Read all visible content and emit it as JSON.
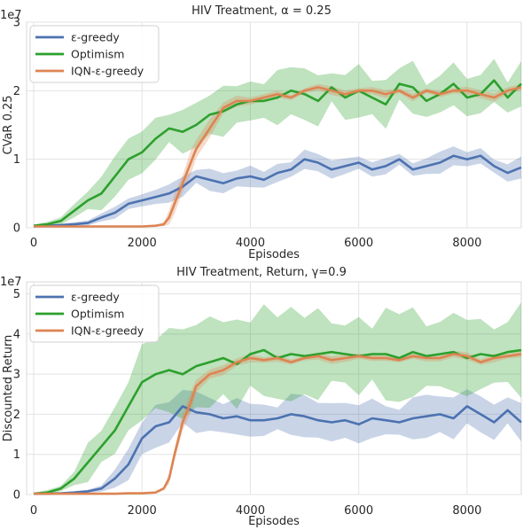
{
  "chart_data": [
    {
      "type": "line",
      "title": "HIV Treatment, α = 0.25",
      "xlabel": "Episodes",
      "ylabel": "CVaR 0.25",
      "y_multiplier": "1e7",
      "xlim": [
        0,
        9000
      ],
      "ylim": [
        0,
        3
      ],
      "xticks": [
        "0",
        "2000",
        "4000",
        "6000",
        "8000"
      ],
      "yticks": [
        "0",
        "1",
        "2",
        "3"
      ],
      "grid": true,
      "legend_position": "top-left",
      "series": [
        {
          "name": "ε-greedy",
          "color": "#4c72b0",
          "x": [
            0,
            250,
            500,
            750,
            1000,
            1250,
            1500,
            1750,
            2000,
            2250,
            2500,
            2750,
            3000,
            3250,
            3500,
            3750,
            4000,
            4250,
            4500,
            4750,
            5000,
            5250,
            5500,
            5750,
            6000,
            6250,
            6500,
            6750,
            7000,
            7250,
            7500,
            7750,
            8000,
            8250,
            8500,
            8750,
            9000
          ],
          "values": [
            0.02,
            0.03,
            0.04,
            0.05,
            0.07,
            0.15,
            0.22,
            0.35,
            0.4,
            0.45,
            0.5,
            0.6,
            0.75,
            0.7,
            0.65,
            0.72,
            0.75,
            0.7,
            0.8,
            0.85,
            1.0,
            0.95,
            0.85,
            0.9,
            0.95,
            0.85,
            0.9,
            1.0,
            0.85,
            0.9,
            0.95,
            1.05,
            1.0,
            1.05,
            0.9,
            0.8,
            0.88
          ],
          "band": [
            0.01,
            0.01,
            0.02,
            0.03,
            0.04,
            0.06,
            0.08,
            0.1,
            0.1,
            0.1,
            0.1,
            0.12,
            0.12,
            0.12,
            0.12,
            0.12,
            0.12,
            0.12,
            0.12,
            0.12,
            0.12,
            0.12,
            0.12,
            0.12,
            0.12,
            0.12,
            0.12,
            0.12,
            0.12,
            0.12,
            0.12,
            0.12,
            0.12,
            0.12,
            0.12,
            0.12,
            0.12
          ]
        },
        {
          "name": "Optimism",
          "color": "#2ca02c",
          "x": [
            0,
            250,
            500,
            750,
            1000,
            1250,
            1500,
            1750,
            2000,
            2250,
            2500,
            2750,
            3000,
            3250,
            3500,
            3750,
            4000,
            4250,
            4500,
            4750,
            5000,
            5250,
            5500,
            5750,
            6000,
            6250,
            6500,
            6750,
            7000,
            7250,
            7500,
            7750,
            8000,
            8250,
            8500,
            8750,
            9000
          ],
          "values": [
            0.03,
            0.05,
            0.1,
            0.25,
            0.4,
            0.5,
            0.75,
            1.0,
            1.1,
            1.3,
            1.45,
            1.4,
            1.5,
            1.65,
            1.7,
            1.8,
            1.85,
            1.85,
            1.9,
            2.0,
            1.95,
            1.85,
            2.05,
            1.9,
            2.0,
            1.9,
            1.8,
            2.1,
            2.05,
            1.85,
            1.95,
            2.1,
            1.9,
            1.95,
            2.15,
            1.9,
            2.1
          ],
          "band": [
            0.02,
            0.03,
            0.05,
            0.1,
            0.15,
            0.2,
            0.25,
            0.3,
            0.3,
            0.3,
            0.3,
            0.3,
            0.3,
            0.3,
            0.3,
            0.3,
            0.3,
            0.3,
            0.3,
            0.3,
            0.3,
            0.3,
            0.3,
            0.3,
            0.3,
            0.3,
            0.3,
            0.3,
            0.3,
            0.3,
            0.3,
            0.3,
            0.3,
            0.3,
            0.3,
            0.3,
            0.3
          ]
        },
        {
          "name": "IQN-ε-greedy",
          "color": "#dd8452",
          "x": [
            0,
            250,
            500,
            750,
            1000,
            1250,
            1500,
            1750,
            2000,
            2250,
            2400,
            2500,
            2600,
            2750,
            2900,
            3000,
            3250,
            3500,
            3750,
            4000,
            4250,
            4500,
            4750,
            5000,
            5250,
            5500,
            5750,
            6000,
            6250,
            6500,
            6750,
            7000,
            7250,
            7500,
            7750,
            8000,
            8250,
            8500,
            8750,
            9000
          ],
          "values": [
            0.02,
            0.02,
            0.02,
            0.02,
            0.02,
            0.02,
            0.02,
            0.02,
            0.02,
            0.03,
            0.05,
            0.15,
            0.35,
            0.65,
            0.95,
            1.15,
            1.45,
            1.75,
            1.85,
            1.85,
            1.9,
            1.95,
            1.9,
            2.0,
            2.05,
            2.0,
            1.95,
            2.0,
            2.0,
            1.95,
            2.0,
            1.9,
            2.0,
            1.95,
            2.0,
            2.0,
            1.95,
            1.9,
            2.0,
            2.05
          ],
          "band": [
            0.01,
            0.01,
            0.01,
            0.01,
            0.01,
            0.01,
            0.01,
            0.01,
            0.01,
            0.01,
            0.03,
            0.08,
            0.12,
            0.15,
            0.15,
            0.12,
            0.1,
            0.08,
            0.06,
            0.05,
            0.05,
            0.05,
            0.05,
            0.05,
            0.05,
            0.05,
            0.05,
            0.05,
            0.05,
            0.05,
            0.05,
            0.05,
            0.05,
            0.05,
            0.05,
            0.05,
            0.05,
            0.05,
            0.05,
            0.05
          ]
        }
      ]
    },
    {
      "type": "line",
      "title": "HIV Treatment, Return, γ=0.9",
      "xlabel": "Episodes",
      "ylabel": "Discounted Return",
      "y_multiplier": "1e7",
      "xlim": [
        0,
        9000
      ],
      "ylim": [
        0,
        5.3
      ],
      "xticks": [
        "0",
        "2000",
        "4000",
        "6000",
        "8000"
      ],
      "yticks": [
        "0",
        "1",
        "2",
        "3",
        "4",
        "5"
      ],
      "grid": true,
      "legend_position": "top-left",
      "series": [
        {
          "name": "ε-greedy",
          "color": "#4c72b0",
          "x": [
            0,
            250,
            500,
            750,
            1000,
            1250,
            1500,
            1750,
            2000,
            2250,
            2500,
            2750,
            3000,
            3250,
            3500,
            3750,
            4000,
            4250,
            4500,
            4750,
            5000,
            5250,
            5500,
            5750,
            6000,
            6250,
            6500,
            6750,
            7000,
            7250,
            7500,
            7750,
            8000,
            8250,
            8500,
            8750,
            9000
          ],
          "values": [
            0.02,
            0.02,
            0.03,
            0.05,
            0.08,
            0.15,
            0.4,
            0.75,
            1.4,
            1.7,
            1.8,
            2.2,
            2.05,
            2.0,
            1.9,
            1.95,
            1.85,
            1.85,
            1.9,
            2.0,
            1.95,
            1.85,
            1.8,
            1.85,
            1.75,
            1.9,
            1.85,
            1.8,
            1.9,
            1.95,
            2.0,
            1.9,
            2.2,
            2.0,
            1.8,
            2.1,
            1.8
          ],
          "band": [
            0.01,
            0.01,
            0.02,
            0.03,
            0.05,
            0.1,
            0.2,
            0.3,
            0.35,
            0.4,
            0.4,
            0.4,
            0.4,
            0.4,
            0.4,
            0.4,
            0.4,
            0.4,
            0.4,
            0.4,
            0.4,
            0.4,
            0.4,
            0.4,
            0.4,
            0.4,
            0.4,
            0.4,
            0.4,
            0.4,
            0.4,
            0.4,
            0.4,
            0.4,
            0.4,
            0.4,
            0.4
          ]
        },
        {
          "name": "Optimism",
          "color": "#2ca02c",
          "x": [
            0,
            250,
            500,
            750,
            1000,
            1250,
            1500,
            1750,
            2000,
            2250,
            2500,
            2750,
            3000,
            3250,
            3500,
            3750,
            4000,
            4250,
            4500,
            4750,
            5000,
            5250,
            5500,
            5750,
            6000,
            6250,
            6500,
            6750,
            7000,
            7250,
            7500,
            7750,
            8000,
            8250,
            8500,
            8750,
            9000
          ],
          "values": [
            0.02,
            0.05,
            0.15,
            0.4,
            0.8,
            1.2,
            1.6,
            2.2,
            2.8,
            3.0,
            3.1,
            3.0,
            3.2,
            3.3,
            3.4,
            3.25,
            3.5,
            3.6,
            3.4,
            3.5,
            3.45,
            3.5,
            3.55,
            3.5,
            3.45,
            3.5,
            3.5,
            3.4,
            3.55,
            3.45,
            3.5,
            3.55,
            3.4,
            3.5,
            3.45,
            3.55,
            3.6
          ],
          "band": [
            0.02,
            0.05,
            0.1,
            0.25,
            0.4,
            0.55,
            0.7,
            0.8,
            0.85,
            0.9,
            0.9,
            0.9,
            0.9,
            0.9,
            0.9,
            0.9,
            0.9,
            0.9,
            0.9,
            0.9,
            0.9,
            0.9,
            0.9,
            0.9,
            0.9,
            0.9,
            0.9,
            0.9,
            0.9,
            0.9,
            0.9,
            0.9,
            0.9,
            0.9,
            0.9,
            0.9,
            0.9
          ]
        },
        {
          "name": "IQN-ε-greedy",
          "color": "#dd8452",
          "x": [
            0,
            250,
            500,
            750,
            1000,
            1250,
            1500,
            1750,
            2000,
            2250,
            2400,
            2500,
            2600,
            2750,
            2900,
            3000,
            3250,
            3500,
            3750,
            4000,
            4250,
            4500,
            4750,
            5000,
            5250,
            5500,
            5750,
            6000,
            6250,
            6500,
            6750,
            7000,
            7250,
            7500,
            7750,
            8000,
            8250,
            8500,
            8750,
            9000
          ],
          "values": [
            0.02,
            0.02,
            0.02,
            0.02,
            0.02,
            0.02,
            0.02,
            0.03,
            0.03,
            0.05,
            0.15,
            0.4,
            1.0,
            1.8,
            2.3,
            2.7,
            3.0,
            3.1,
            3.3,
            3.4,
            3.35,
            3.4,
            3.3,
            3.4,
            3.45,
            3.35,
            3.4,
            3.45,
            3.4,
            3.4,
            3.35,
            3.45,
            3.4,
            3.4,
            3.5,
            3.45,
            3.3,
            3.4,
            3.45,
            3.5
          ],
          "band": [
            0.01,
            0.01,
            0.01,
            0.01,
            0.01,
            0.01,
            0.01,
            0.01,
            0.01,
            0.02,
            0.05,
            0.1,
            0.2,
            0.2,
            0.2,
            0.15,
            0.1,
            0.1,
            0.08,
            0.08,
            0.08,
            0.08,
            0.08,
            0.08,
            0.08,
            0.08,
            0.08,
            0.08,
            0.08,
            0.08,
            0.08,
            0.08,
            0.08,
            0.08,
            0.08,
            0.08,
            0.08,
            0.08,
            0.08,
            0.08
          ]
        }
      ]
    }
  ]
}
